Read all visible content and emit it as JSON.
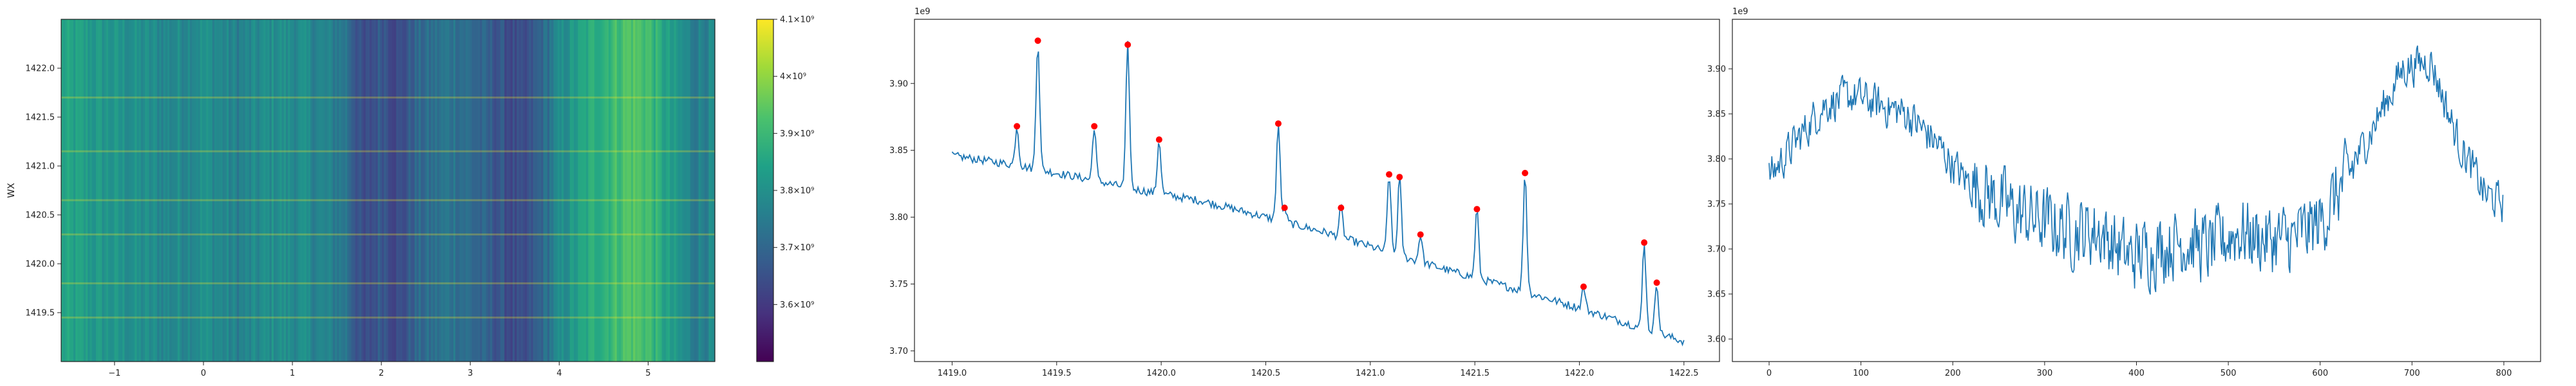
{
  "colors": {
    "line": "#1f77b4",
    "peak": "#ff0000",
    "axis": "#222222"
  },
  "chart_data": [
    {
      "type": "heatmap",
      "colormap": "viridis",
      "ylabel": "WX",
      "x_ticks": [
        "−1",
        "0",
        "1",
        "2",
        "3",
        "4",
        "5"
      ],
      "x_tick_values": [
        -1,
        0,
        1,
        2,
        3,
        4,
        5
      ],
      "xlim": [
        -1.6,
        5.75
      ],
      "y_ticks": [
        "1419.5",
        "1420.0",
        "1420.5",
        "1421.0",
        "1421.5",
        "1422.0"
      ],
      "y_tick_values": [
        1419.5,
        1420.0,
        1420.5,
        1421.0,
        1421.5,
        1422.0
      ],
      "ylim": [
        1419.0,
        1422.5
      ],
      "colorbar": {
        "ticks": [
          "3.6×10⁹",
          "3.7×10⁹",
          "3.8×10⁹",
          "3.9×10⁹",
          "4×10⁹",
          "4.1×10⁹"
        ],
        "tick_values": [
          3600000000.0,
          3700000000.0,
          3800000000.0,
          3900000000.0,
          4000000000.0,
          4100000000.0
        ],
        "range": [
          3500000000.0,
          4100000000.0
        ]
      },
      "column_profile_x": [
        -1.6,
        -1.2,
        -0.8,
        -0.4,
        0.0,
        0.4,
        0.8,
        1.2,
        1.6,
        1.8,
        2.0,
        2.2,
        2.4,
        2.8,
        3.2,
        3.6,
        3.8,
        4.0,
        4.4,
        4.8,
        5.0,
        5.2,
        5.5,
        5.75
      ],
      "column_profile_value": [
        3850000000.0,
        3820000000.0,
        3800000000.0,
        3780000000.0,
        3800000000.0,
        3760000000.0,
        3800000000.0,
        3780000000.0,
        3740000000.0,
        3620000000.0,
        3680000000.0,
        3630000000.0,
        3700000000.0,
        3740000000.0,
        3680000000.0,
        3620000000.0,
        3700000000.0,
        3780000000.0,
        3880000000.0,
        3940000000.0,
        3920000000.0,
        3840000000.0,
        3760000000.0,
        3780000000.0
      ],
      "bright_rows_y": [
        1419.45,
        1419.8,
        1420.3,
        1420.65,
        1421.15,
        1421.7
      ]
    },
    {
      "type": "line",
      "offset_label": "1e9",
      "x_ticks": [
        "1419.0",
        "1419.5",
        "1420.0",
        "1420.5",
        "1421.0",
        "1421.5",
        "1422.0",
        "1422.5"
      ],
      "x_tick_values": [
        1419.0,
        1419.5,
        1420.0,
        1420.5,
        1421.0,
        1421.5,
        1422.0,
        1422.5
      ],
      "y_ticks": [
        "3.70",
        "3.75",
        "3.80",
        "3.85",
        "3.90"
      ],
      "y_tick_values": [
        3.7,
        3.75,
        3.8,
        3.85,
        3.9
      ],
      "xlim": [
        1418.82,
        1422.67
      ],
      "ylim": [
        3.692,
        3.948
      ],
      "baseline": {
        "x": [
          1419.0,
          1419.3,
          1419.6,
          1419.9,
          1420.2,
          1420.5,
          1420.8,
          1421.1,
          1421.4,
          1421.7,
          1422.0,
          1422.3,
          1422.5
        ],
        "y": [
          3.846,
          3.839,
          3.83,
          3.82,
          3.812,
          3.8,
          3.788,
          3.773,
          3.759,
          3.746,
          3.732,
          3.717,
          3.707
        ]
      },
      "peaks": {
        "x": [
          1419.31,
          1419.41,
          1419.68,
          1419.84,
          1419.99,
          1420.56,
          1420.59,
          1420.86,
          1421.09,
          1421.14,
          1421.24,
          1421.51,
          1421.74,
          1422.02,
          1422.31,
          1422.37
        ],
        "y": [
          3.868,
          3.932,
          3.868,
          3.929,
          3.858,
          3.87,
          3.807,
          3.807,
          3.832,
          3.83,
          3.787,
          3.806,
          3.833,
          3.748,
          3.781,
          3.751
        ]
      }
    },
    {
      "type": "line",
      "offset_label": "1e9",
      "x_ticks": [
        "0",
        "100",
        "200",
        "300",
        "400",
        "500",
        "600",
        "700",
        "800"
      ],
      "x_tick_values": [
        0,
        100,
        200,
        300,
        400,
        500,
        600,
        700,
        800
      ],
      "y_ticks": [
        "3.60",
        "3.65",
        "3.70",
        "3.75",
        "3.80",
        "3.85",
        "3.90"
      ],
      "y_tick_values": [
        3.6,
        3.65,
        3.7,
        3.75,
        3.8,
        3.85,
        3.9
      ],
      "xlim": [
        -40,
        840
      ],
      "ylim": [
        3.575,
        3.955
      ],
      "n_points": 800,
      "trend": {
        "x": [
          0,
          30,
          60,
          90,
          120,
          150,
          180,
          210,
          240,
          270,
          300,
          330,
          360,
          390,
          420,
          450,
          480,
          510,
          540,
          570,
          600,
          630,
          660,
          690,
          720,
          750,
          780,
          800
        ],
        "y": [
          3.78,
          3.82,
          3.86,
          3.87,
          3.86,
          3.85,
          3.82,
          3.78,
          3.76,
          3.74,
          3.73,
          3.72,
          3.72,
          3.69,
          3.7,
          3.71,
          3.7,
          3.72,
          3.71,
          3.71,
          3.73,
          3.78,
          3.84,
          3.9,
          3.91,
          3.82,
          3.76,
          3.75
        ]
      }
    }
  ]
}
